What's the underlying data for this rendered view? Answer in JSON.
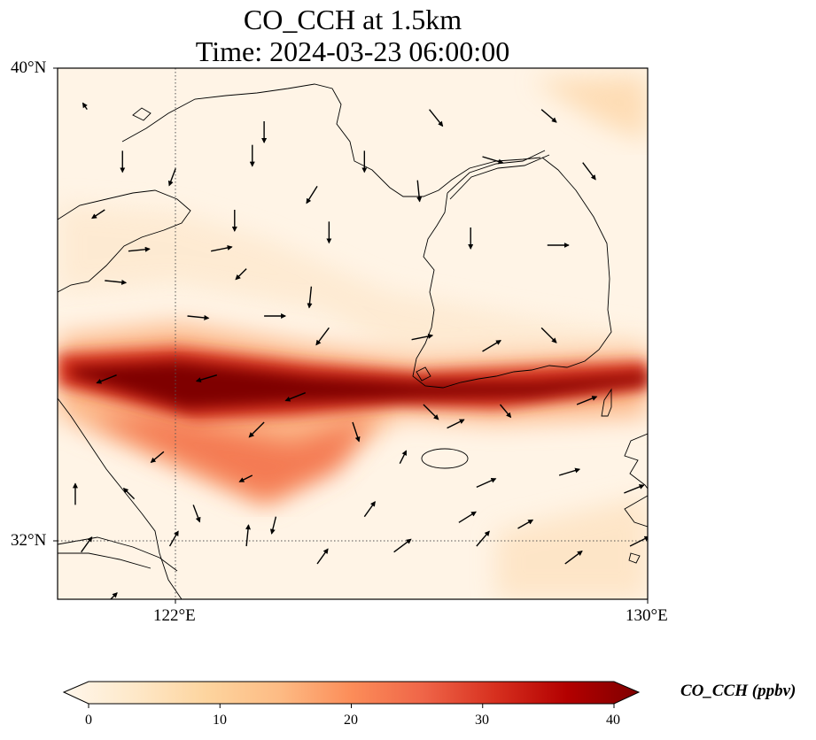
{
  "map": {
    "title_line1": "CO_CCH at 1.5km",
    "title_line2": "Time: 2024-03-23 06:00:00",
    "lat_labels": [
      "40°N",
      "32°N"
    ],
    "lon_labels": [
      "122°E",
      "130°E"
    ],
    "extent": {
      "lon_min": 120,
      "lon_max": 130,
      "lat_min": 31,
      "lat_max": 40
    },
    "gridlines": {
      "lons": [
        122
      ],
      "lats": [
        32
      ],
      "style": "dotted"
    }
  },
  "colorbar": {
    "label": "CO_CCH (ppbv)",
    "ticks": [
      "0",
      "10",
      "20",
      "30",
      "40"
    ],
    "tick_values": [
      0,
      10,
      20,
      30,
      40
    ],
    "range": [
      0,
      40
    ],
    "extend": "both",
    "colormap": "OrRd",
    "stops": [
      "#fff7ec",
      "#fee8c8",
      "#fdd49e",
      "#fdbb84",
      "#fc8d59",
      "#ef6548",
      "#d7301f",
      "#b30000",
      "#7f0000"
    ]
  },
  "chart_data": {
    "type": "heatmap",
    "variable": "CO_CCH",
    "units": "ppbv",
    "level": "1.5km",
    "time": "2024-03-23 06:00:00",
    "plumes": [
      {
        "name": "main-band",
        "path": [
          [
            120.0,
            35.0
          ],
          [
            122.0,
            34.7
          ],
          [
            125.0,
            34.4
          ],
          [
            127.5,
            34.4
          ],
          [
            130.0,
            34.8
          ]
        ],
        "peak_value": 40
      },
      {
        "name": "southern-lobe",
        "path": [
          [
            122.0,
            33.9
          ],
          [
            123.5,
            33.4
          ],
          [
            124.5,
            33.6
          ]
        ],
        "peak_value": 24
      }
    ],
    "wind_vectors": [
      [
        120.5,
        39.3,
        -0.2,
        0.3
      ],
      [
        123.5,
        39.1,
        0.0,
        -1.0
      ],
      [
        126.3,
        39.3,
        0.8,
        -1.0
      ],
      [
        128.2,
        39.3,
        0.7,
        -0.6
      ],
      [
        121.1,
        38.6,
        0.0,
        -1.0
      ],
      [
        123.3,
        38.7,
        0.0,
        -1.0
      ],
      [
        125.2,
        38.6,
        0.0,
        -1.0
      ],
      [
        127.2,
        38.5,
        1.0,
        -0.3
      ],
      [
        128.9,
        38.4,
        0.6,
        -0.8
      ],
      [
        122.0,
        38.3,
        -0.3,
        -0.8
      ],
      [
        124.4,
        38.0,
        -0.5,
        -0.8
      ],
      [
        126.1,
        38.1,
        0.1,
        -1.0
      ],
      [
        120.8,
        37.6,
        -0.6,
        -0.4
      ],
      [
        123.0,
        37.6,
        0.0,
        -1.0
      ],
      [
        124.6,
        37.4,
        0.0,
        -1.0
      ],
      [
        127.0,
        37.3,
        0.0,
        -1.0
      ],
      [
        128.3,
        37.0,
        1.0,
        0.0
      ],
      [
        121.2,
        36.9,
        1.0,
        0.1
      ],
      [
        122.6,
        36.9,
        1.0,
        0.2
      ],
      [
        123.2,
        36.6,
        -0.5,
        -0.5
      ],
      [
        124.3,
        36.3,
        -0.1,
        -1.0
      ],
      [
        120.8,
        36.4,
        1.0,
        -0.1
      ],
      [
        122.2,
        35.8,
        1.0,
        -0.1
      ],
      [
        123.5,
        35.8,
        1.0,
        0.0
      ],
      [
        124.6,
        35.6,
        -0.6,
        -0.8
      ],
      [
        126.0,
        35.4,
        1.0,
        0.2
      ],
      [
        127.2,
        35.2,
        1.0,
        0.6
      ],
      [
        128.2,
        35.6,
        0.7,
        -0.7
      ],
      [
        121.0,
        34.8,
        -1.0,
        -0.4
      ],
      [
        122.7,
        34.8,
        -1.0,
        -0.3
      ],
      [
        124.2,
        34.5,
        -1.0,
        -0.4
      ],
      [
        126.2,
        34.3,
        0.7,
        -0.7
      ],
      [
        127.5,
        34.3,
        0.5,
        -0.6
      ],
      [
        128.8,
        34.3,
        1.0,
        0.4
      ],
      [
        123.5,
        34.0,
        -0.7,
        -0.7
      ],
      [
        125.0,
        34.0,
        0.3,
        -0.9
      ],
      [
        126.6,
        33.9,
        0.8,
        0.4
      ],
      [
        121.8,
        33.5,
        -0.6,
        -0.5
      ],
      [
        123.3,
        33.1,
        -0.6,
        -0.3
      ],
      [
        125.8,
        33.3,
        0.3,
        0.6
      ],
      [
        127.1,
        32.9,
        0.9,
        0.4
      ],
      [
        128.5,
        33.1,
        1.0,
        0.3
      ],
      [
        129.6,
        32.8,
        1.0,
        0.4
      ],
      [
        120.3,
        32.6,
        0.0,
        1.0
      ],
      [
        121.3,
        32.7,
        -0.5,
        0.5
      ],
      [
        122.3,
        32.6,
        0.3,
        -0.8
      ],
      [
        123.7,
        32.4,
        -0.2,
        -0.8
      ],
      [
        125.2,
        32.4,
        0.5,
        0.7
      ],
      [
        126.8,
        32.3,
        0.8,
        0.5
      ],
      [
        127.8,
        32.2,
        0.7,
        0.4
      ],
      [
        120.4,
        31.8,
        0.5,
        0.7
      ],
      [
        121.9,
        31.9,
        0.4,
        0.7
      ],
      [
        123.2,
        31.9,
        0.1,
        1.0
      ],
      [
        124.4,
        31.6,
        0.5,
        0.7
      ],
      [
        125.7,
        31.8,
        0.8,
        0.6
      ],
      [
        127.1,
        31.9,
        0.6,
        0.7
      ],
      [
        128.6,
        31.6,
        0.8,
        0.6
      ],
      [
        129.7,
        31.9,
        1.0,
        0.5
      ],
      [
        120.9,
        31.0,
        0.3,
        0.3
      ]
    ]
  }
}
